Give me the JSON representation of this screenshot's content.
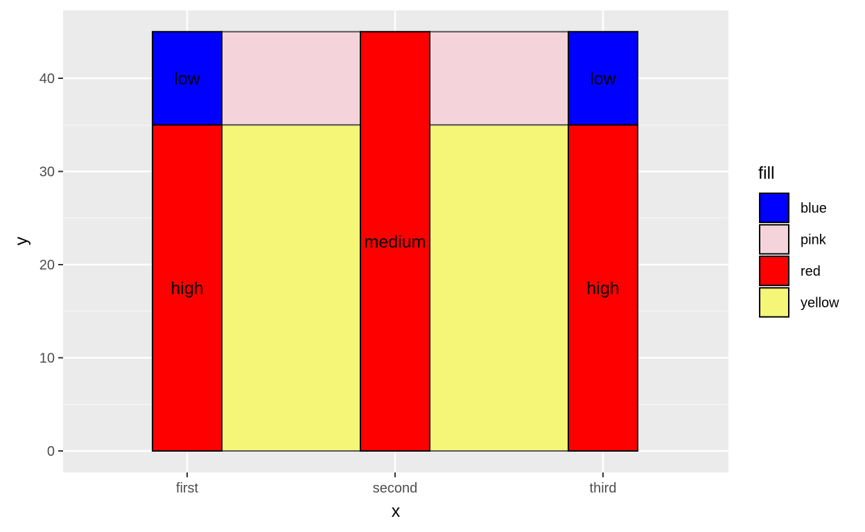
{
  "chart_data": {
    "type": "bar",
    "title": "",
    "xlabel": "x",
    "ylabel": "y",
    "categories": [
      "first",
      "second",
      "third"
    ],
    "ylim": [
      0,
      45
    ],
    "yticks": [
      0,
      10,
      20,
      30,
      40
    ],
    "grid": true,
    "legend": {
      "title": "fill",
      "placement": "right",
      "entries": [
        {
          "label": "blue",
          "color": "#0000ff"
        },
        {
          "label": "pink",
          "color": "#f4d4da"
        },
        {
          "label": "red",
          "color": "#ff0000"
        },
        {
          "label": "yellow",
          "color": "#f5f577"
        }
      ]
    },
    "background_rects": [
      {
        "x_start": "first",
        "x_end": "second",
        "y_start": 0,
        "y_end": 35,
        "fill": "yellow"
      },
      {
        "x_start": "first",
        "x_end": "second",
        "y_start": 35,
        "y_end": 45,
        "fill": "pink"
      },
      {
        "x_start": "second",
        "x_end": "third",
        "y_start": 0,
        "y_end": 35,
        "fill": "yellow"
      },
      {
        "x_start": "second",
        "x_end": "third",
        "y_start": 35,
        "y_end": 45,
        "fill": "pink"
      }
    ],
    "bars": [
      {
        "category": "first",
        "y_start": 0,
        "y_end": 35,
        "fill": "red",
        "label": "high"
      },
      {
        "category": "first",
        "y_start": 35,
        "y_end": 45,
        "fill": "blue",
        "label": "low"
      },
      {
        "category": "second",
        "y_start": 0,
        "y_end": 45,
        "fill": "red",
        "label": "medium"
      },
      {
        "category": "third",
        "y_start": 0,
        "y_end": 35,
        "fill": "red",
        "label": "high"
      },
      {
        "category": "third",
        "y_start": 35,
        "y_end": 45,
        "fill": "blue",
        "label": "low"
      }
    ]
  }
}
